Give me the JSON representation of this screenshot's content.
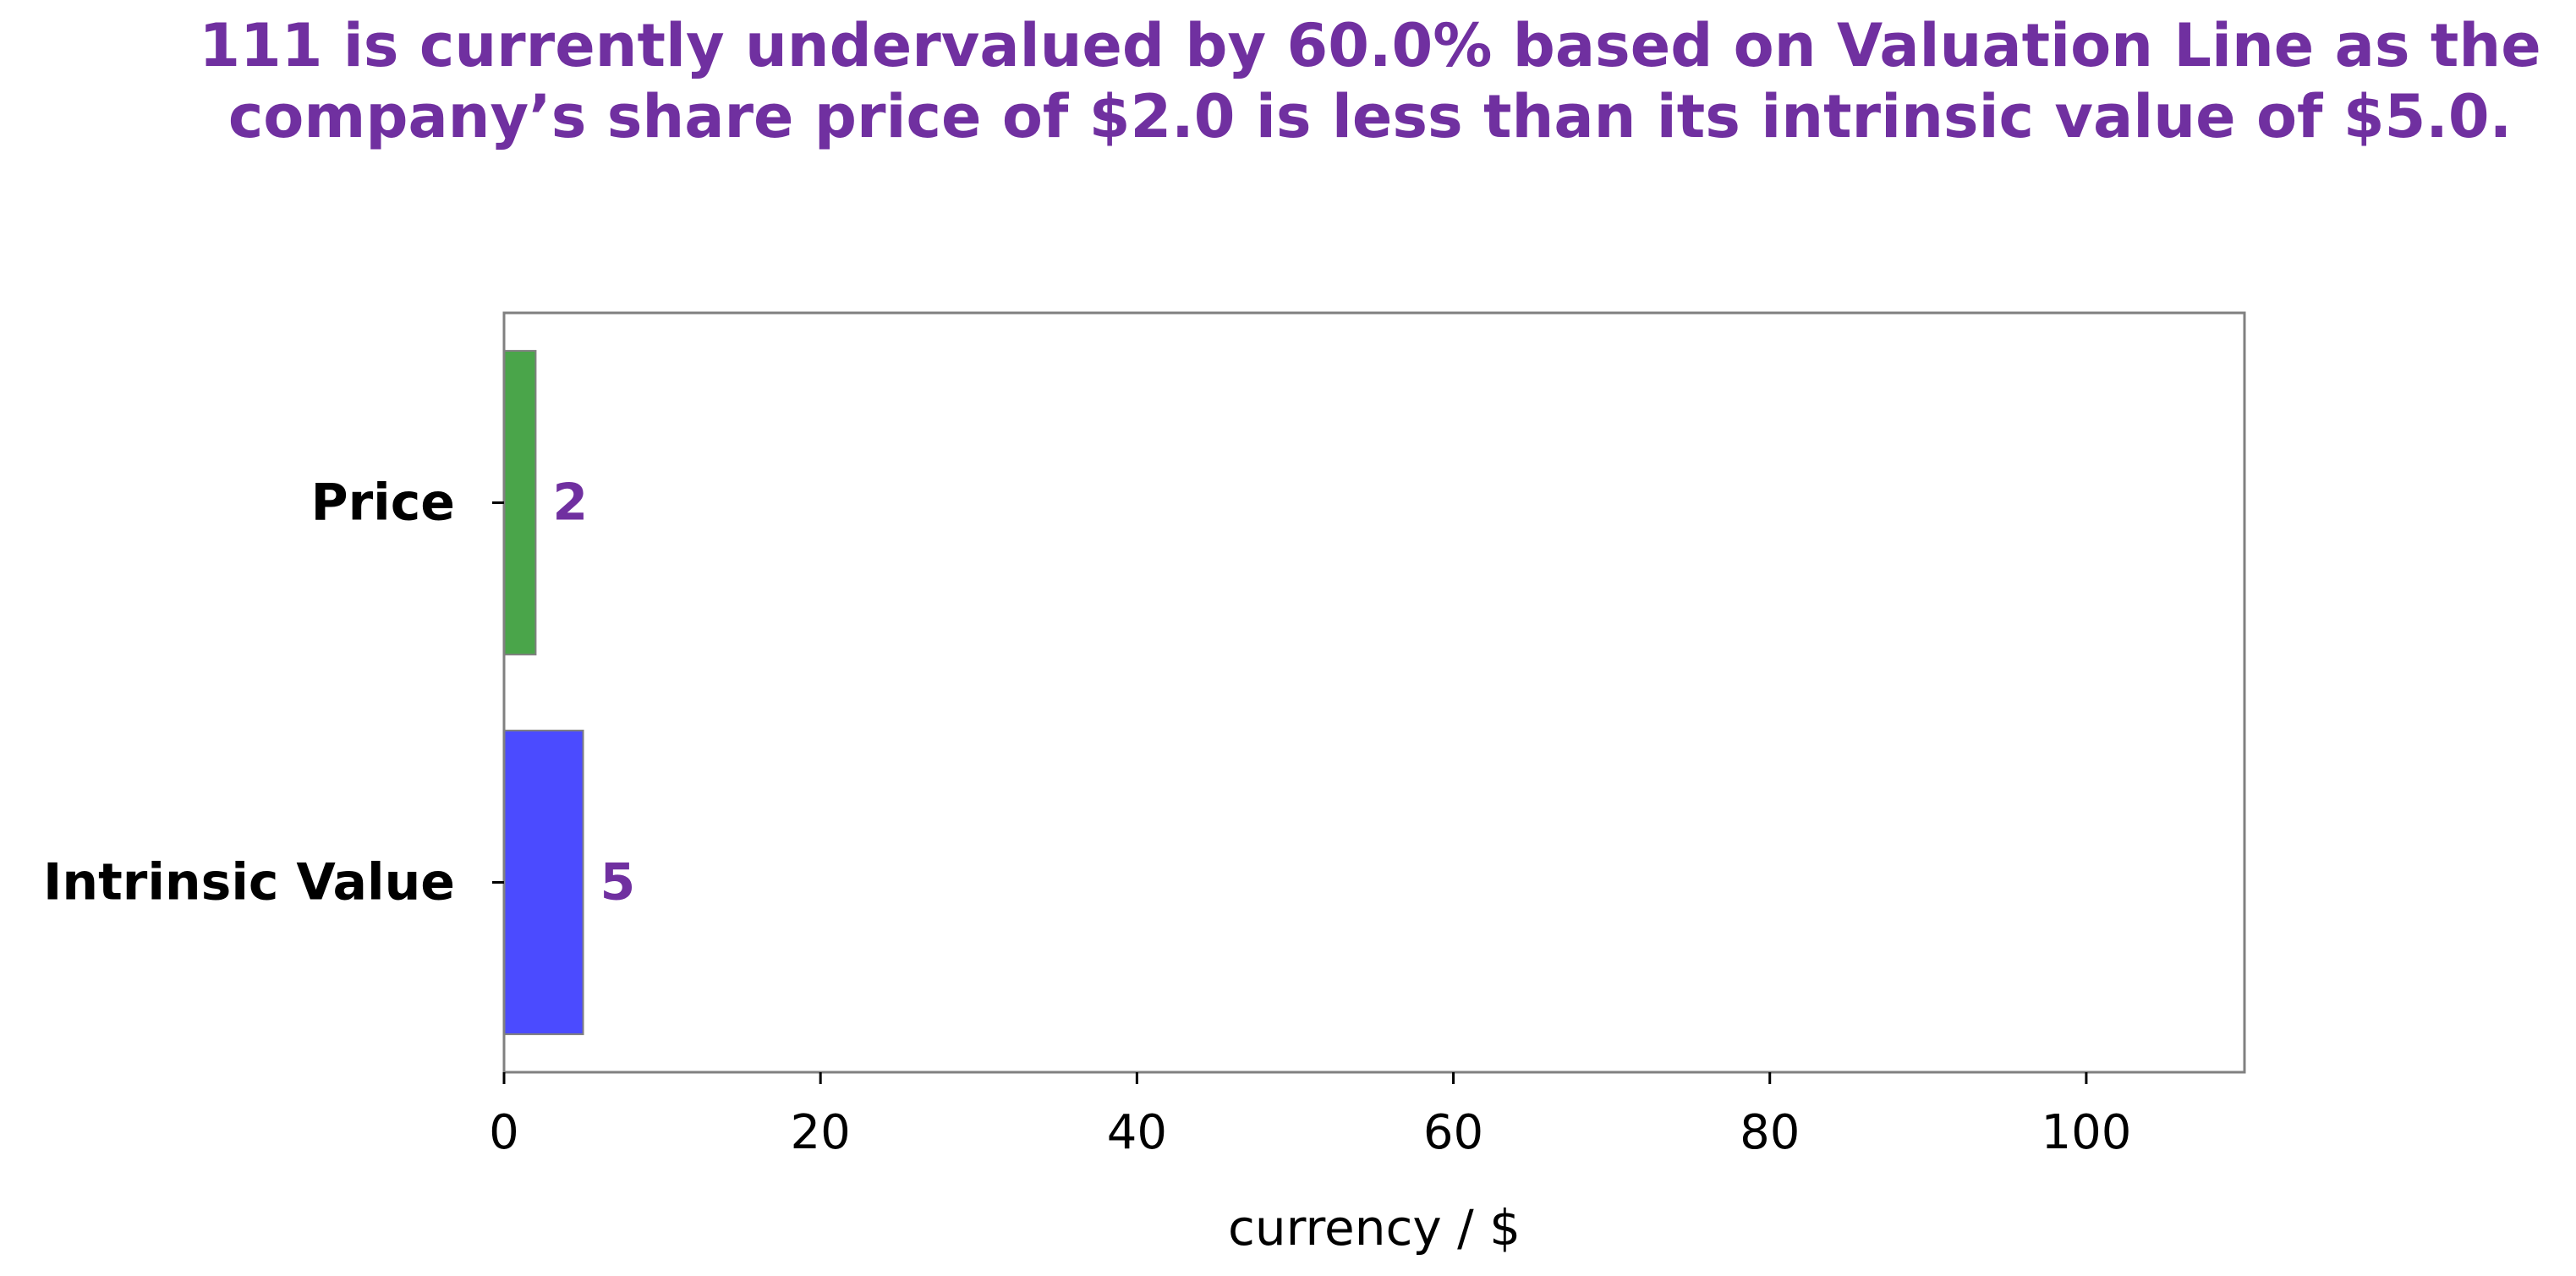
{
  "chart_data": {
    "type": "bar",
    "orientation": "horizontal",
    "title": "111 is currently undervalued by 60.0% based on Valuation Line as the company’s share price of $2.0 is less than its intrinsic value of $5.0.",
    "categories": [
      "Price",
      "Intrinsic Value"
    ],
    "values": [
      2,
      5
    ],
    "data_labels": [
      "2",
      "5"
    ],
    "bar_colors": [
      "#4aa54a",
      "#4b4bff"
    ],
    "label_color": "#7030a0",
    "title_color": "#7030a0",
    "xlabel": "currency / $",
    "ylabel": "",
    "xlim": [
      0,
      110
    ],
    "x_ticks": [
      0,
      20,
      40,
      60,
      80,
      100
    ],
    "x_tick_labels": [
      "0",
      "20",
      "40",
      "60",
      "80",
      "100"
    ],
    "grid": false,
    "legend": "none"
  }
}
